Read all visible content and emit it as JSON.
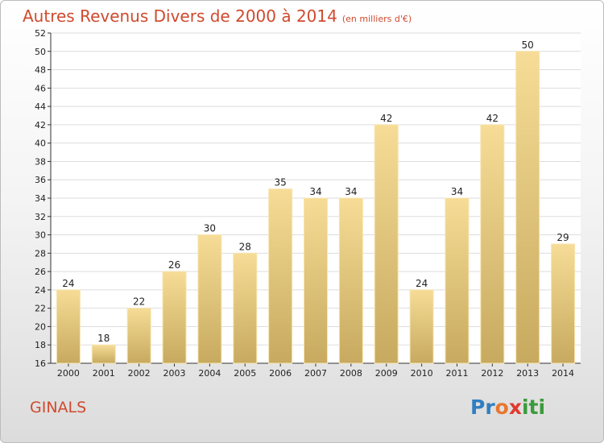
{
  "header": {
    "title": "Autres Revenus Divers de 2000 à 2014",
    "subtitle": "(en milliers d'€)"
  },
  "footer": {
    "location": "GINALS",
    "logo_text": "Proxiti",
    "logo_parts": [
      "Pr",
      "o",
      "x",
      "iti"
    ]
  },
  "colors": {
    "title": "#d04a2e",
    "bar_top": "#f6dc96",
    "bar_bottom": "#c7aa5f",
    "grid": "#dddddd"
  },
  "chart_data": {
    "type": "bar",
    "categories": [
      "2000",
      "2001",
      "2002",
      "2003",
      "2004",
      "2005",
      "2006",
      "2007",
      "2008",
      "2009",
      "2010",
      "2011",
      "2012",
      "2013",
      "2014"
    ],
    "values": [
      24,
      18,
      22,
      26,
      30,
      28,
      35,
      34,
      34,
      42,
      24,
      34,
      42,
      50,
      29
    ],
    "ylim": [
      16,
      52
    ],
    "ytick_step": 2,
    "grid": true,
    "legend": "none"
  }
}
